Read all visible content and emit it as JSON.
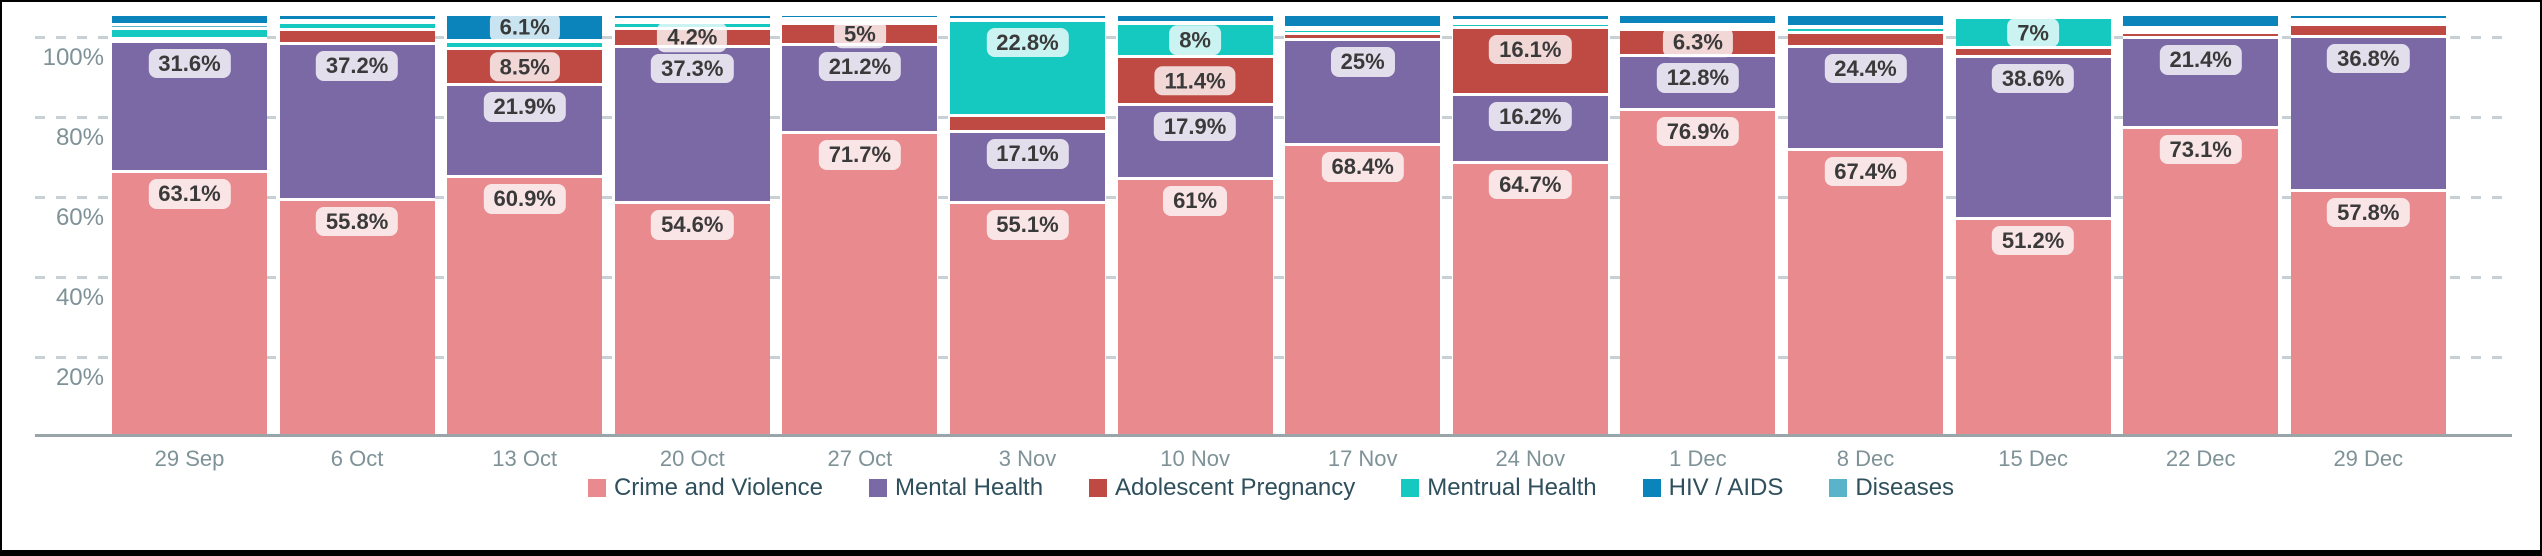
{
  "window": {
    "background_color": "#ffffff",
    "frame_color": "#000000"
  },
  "chart_data": {
    "type": "bar",
    "variant": "stacked-100-percent-vertical",
    "title": "",
    "xlabel": "",
    "ylabel": "",
    "grid": "dashed-horizontal",
    "legend_position": "bottom-center",
    "y_ticks": [
      "20%",
      "40%",
      "60%",
      "80%",
      "100%"
    ],
    "ylim": [
      0,
      105
    ],
    "label_threshold_pct": 4,
    "categories": [
      "29 Sep",
      "6 Oct",
      "13 Oct",
      "20 Oct",
      "27 Oct",
      "3 Nov",
      "10 Nov",
      "17 Nov",
      "24 Nov",
      "1 Dec",
      "8 Dec",
      "15 Dec",
      "22 Dec",
      "29 Dec"
    ],
    "series": [
      {
        "name": "Crime and Violence",
        "color": "#e98b8e",
        "values": [
          63.1,
          55.8,
          60.9,
          54.6,
          71.7,
          55.1,
          61,
          68.4,
          64.7,
          76.9,
          67.4,
          51.2,
          73.1,
          57.8
        ]
      },
      {
        "name": "Mental Health",
        "color": "#7a69a4",
        "values": [
          31.6,
          37.2,
          21.9,
          37.3,
          21.2,
          17.1,
          17.9,
          25,
          16.2,
          12.8,
          24.4,
          38.6,
          21.4,
          36.8
        ]
      },
      {
        "name": "Adolescent Pregnancy",
        "color": "#bf4a44",
        "values": [
          0.7,
          3.5,
          8.5,
          4.2,
          5,
          3.9,
          11.4,
          1.5,
          16.1,
          6.3,
          3.4,
          2.2,
          1.2,
          2.8
        ]
      },
      {
        "name": "Mentrual Health",
        "color": "#16c9c0",
        "values": [
          2.3,
          1.5,
          1.8,
          1.5,
          0.7,
          22.8,
          8,
          1,
          0.9,
          0.7,
          1.1,
          7,
          0.8,
          0.7
        ]
      },
      {
        "name": "HIV / AIDS",
        "color": "#0b84bb",
        "values": [
          2.5,
          1.5,
          6.1,
          1.3,
          1,
          1.1,
          1.8,
          3,
          1.4,
          2.4,
          2.8,
          0.5,
          3.2,
          1.2
        ]
      },
      {
        "name": "Diseases",
        "color": "#5ab4c9",
        "values": [
          1,
          0.5,
          0.3,
          0.5,
          0.4,
          0.3,
          0.4,
          0.5,
          0.7,
          0.4,
          0.3,
          0.3,
          0.4,
          0.5
        ]
      }
    ],
    "stack_order_bottom_to_top": [
      "Crime and Violence",
      "Mental Health",
      "Adolescent Pregnancy",
      "Mentrual Health",
      "Diseases",
      "HIV / AIDS"
    ],
    "visible_segment_labels": {
      "29 Sep": [
        "63.1%",
        "31.6%"
      ],
      "6 Oct": [
        "55.8%",
        "37.2%"
      ],
      "13 Oct": [
        "60.9%",
        "21.9%",
        "8.5%",
        "6.1%"
      ],
      "20 Oct": [
        "54.6%",
        "37.3%",
        "4.2%"
      ],
      "27 Oct": [
        "71.7%",
        "21.2%",
        "5%"
      ],
      "3 Nov": [
        "55.1%",
        "17.1%",
        "22.8%"
      ],
      "10 Nov": [
        "61%",
        "17.9%",
        "11.4%",
        "8%"
      ],
      "17 Nov": [
        "68.4%",
        "25%"
      ],
      "24 Nov": [
        "64.7%",
        "16.2%",
        "16.1%"
      ],
      "1 Dec": [
        "76.9%",
        "12.8%",
        "6.3%"
      ],
      "8 Dec": [
        "67.4%",
        "24.4%"
      ],
      "15 Dec": [
        "51.2%",
        "38.6%",
        "7%"
      ],
      "22 Dec": [
        "73.1%",
        "21.4%"
      ],
      "29 Dec": [
        "57.8%",
        "36.8%"
      ]
    },
    "style_colors": {
      "axis_text": "#7e9297",
      "legend_text": "#2f4f5c",
      "gridline": "#c7d0d4",
      "baseline": "#9aa5aa",
      "segment_label_text": "#3a3a3a",
      "segment_label_pill": "rgba(255,255,255,0.78)"
    }
  }
}
